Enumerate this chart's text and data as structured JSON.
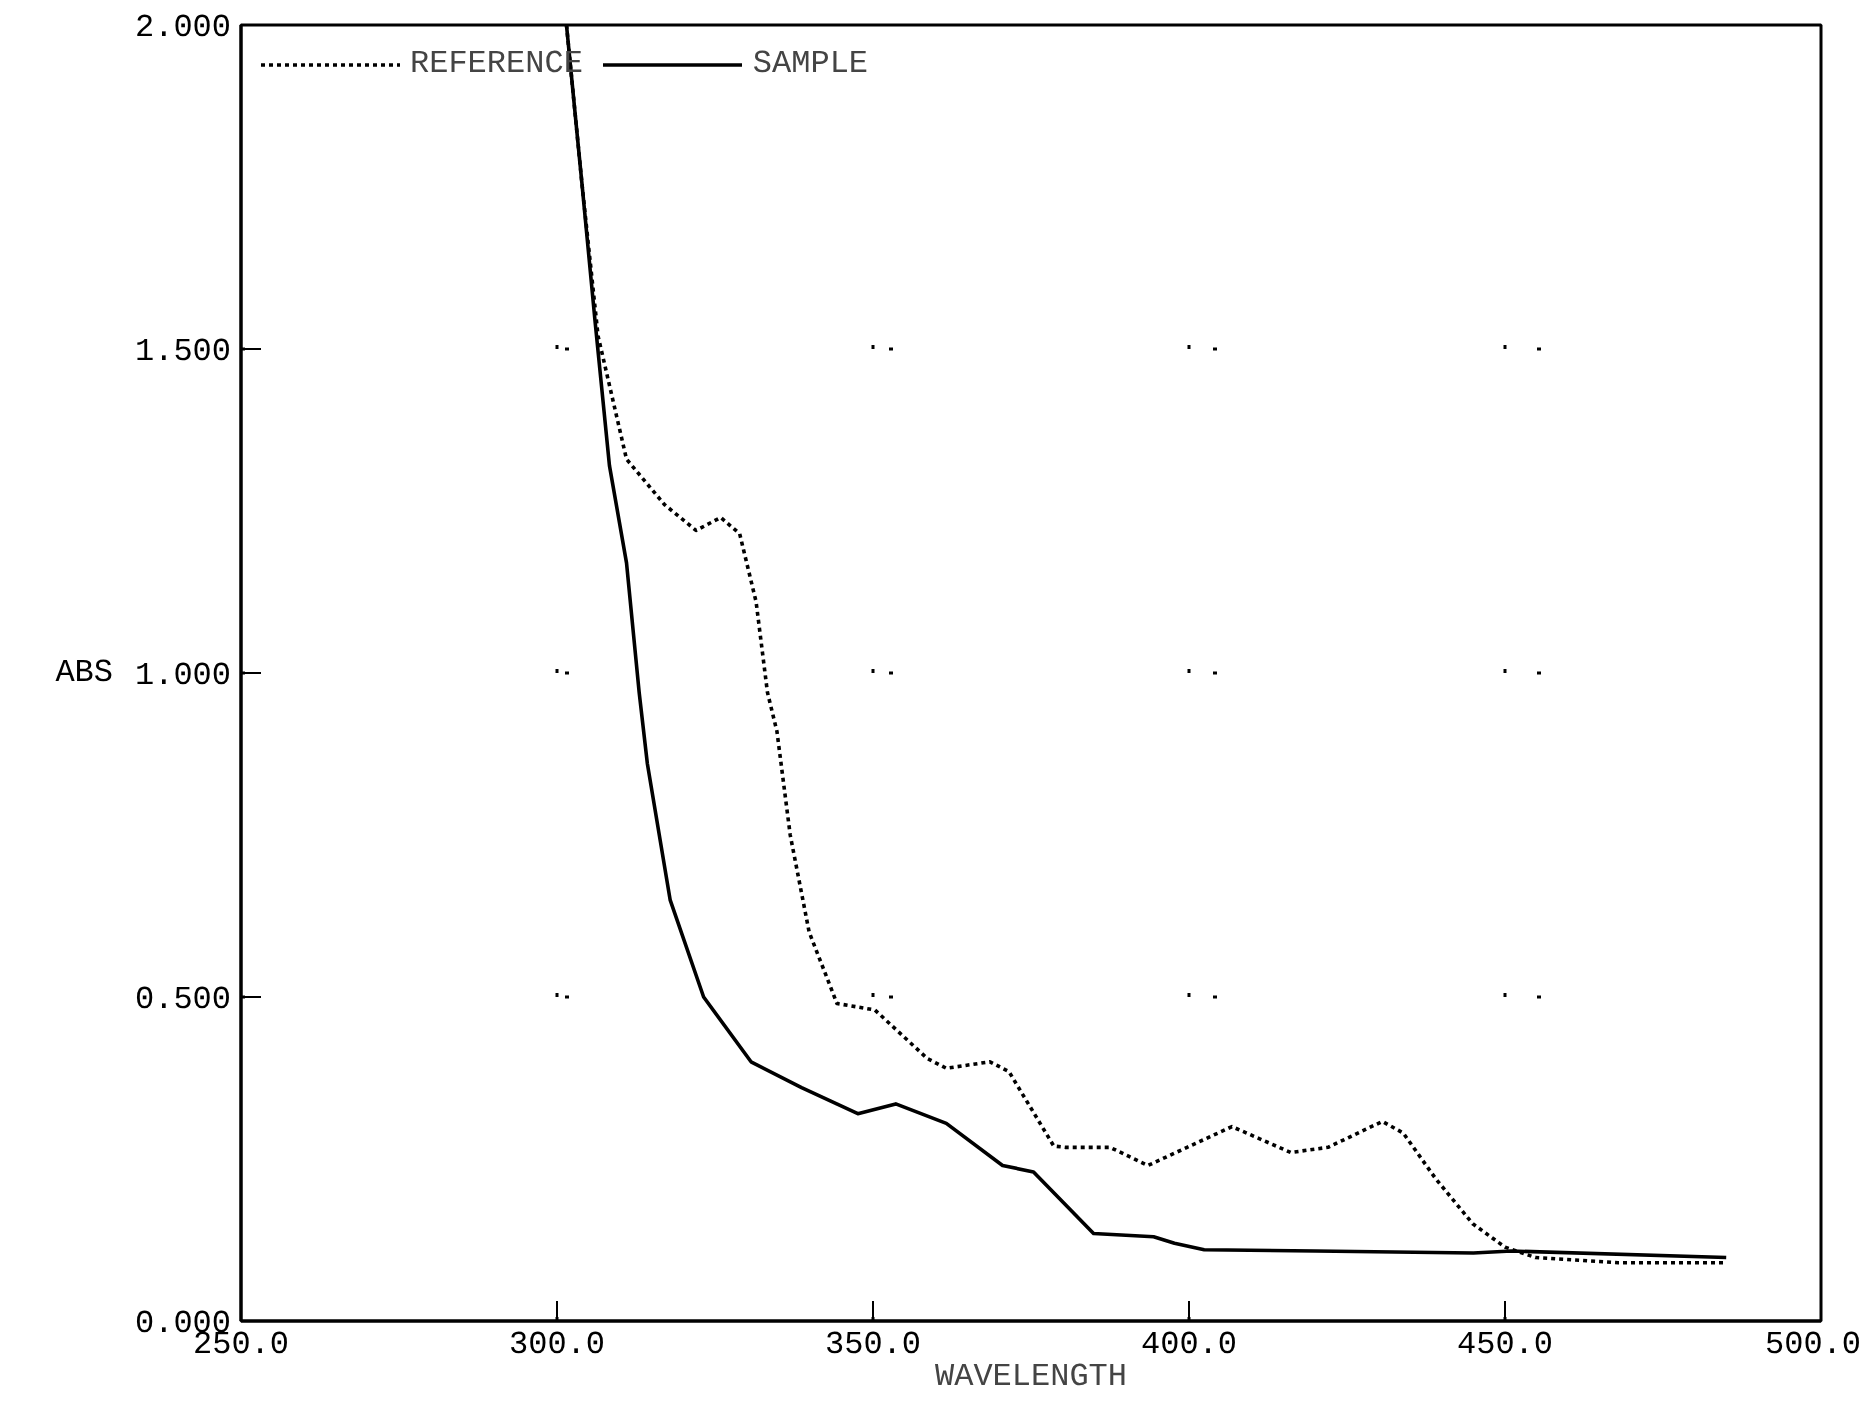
{
  "chart_data": {
    "type": "line",
    "xlabel": "WAVELENGTH",
    "ylabel": "ABS",
    "xlim": [
      250,
      500
    ],
    "ylim": [
      0,
      2
    ],
    "xticks": [
      {
        "value": 250,
        "label": "250.0"
      },
      {
        "value": 300,
        "label": "300.0"
      },
      {
        "value": 350,
        "label": "350.0"
      },
      {
        "value": 400,
        "label": "400.0"
      },
      {
        "value": 450,
        "label": "450.0"
      },
      {
        "value": 500,
        "label": "500.0"
      }
    ],
    "yticks": [
      {
        "value": 0,
        "label": "0.000"
      },
      {
        "value": 0.5,
        "label": "0.500"
      },
      {
        "value": 1,
        "label": "1.000"
      },
      {
        "value": 1.5,
        "label": "1.500"
      },
      {
        "value": 2,
        "label": "2.000"
      }
    ],
    "grid": true,
    "legend": "top left",
    "marker": "none",
    "series": [
      {
        "name": "REFERENCE",
        "color": "#000000",
        "line_style": "dotted",
        "x": [
          301.5,
          304,
          306.5,
          311,
          317,
          322,
          325.9,
          328.9,
          331.5,
          333.3,
          334.8,
          336.9,
          339.9,
          344.3,
          350.3,
          358.6,
          361.6,
          368.5,
          371.5,
          378.6,
          380.4,
          387.5,
          393.5,
          399.7,
          406.8,
          416.1,
          422,
          430.6,
          433.9,
          439,
          444.9,
          450,
          454.8,
          467.9,
          485.1
        ],
        "values": [
          2.0,
          1.75,
          1.52,
          1.33,
          1.26,
          1.22,
          1.24,
          1.215,
          1.11,
          0.97,
          0.91,
          0.75,
          0.6,
          0.49,
          0.48,
          0.405,
          0.39,
          0.4,
          0.385,
          0.27,
          0.268,
          0.268,
          0.24,
          0.268,
          0.3,
          0.26,
          0.268,
          0.308,
          0.29,
          0.22,
          0.15,
          0.114,
          0.098,
          0.09,
          0.09
        ]
      },
      {
        "name": "SAMPLE",
        "color": "#000000",
        "line_style": "solid",
        "x": [
          301.5,
          304,
          306,
          308.3,
          311,
          313,
          314.3,
          317.9,
          323.2,
          330.7,
          338.7,
          347.6,
          353.6,
          361.6,
          370.5,
          375.4,
          384.9,
          394.4,
          397.7,
          402.4,
          420,
          445,
          451,
          485
        ],
        "values": [
          2.0,
          1.75,
          1.545,
          1.32,
          1.17,
          0.97,
          0.86,
          0.65,
          0.5,
          0.4,
          0.36,
          0.32,
          0.335,
          0.305,
          0.24,
          0.23,
          0.135,
          0.13,
          0.12,
          0.11,
          0.108,
          0.105,
          0.108,
          0.098
        ]
      }
    ]
  }
}
